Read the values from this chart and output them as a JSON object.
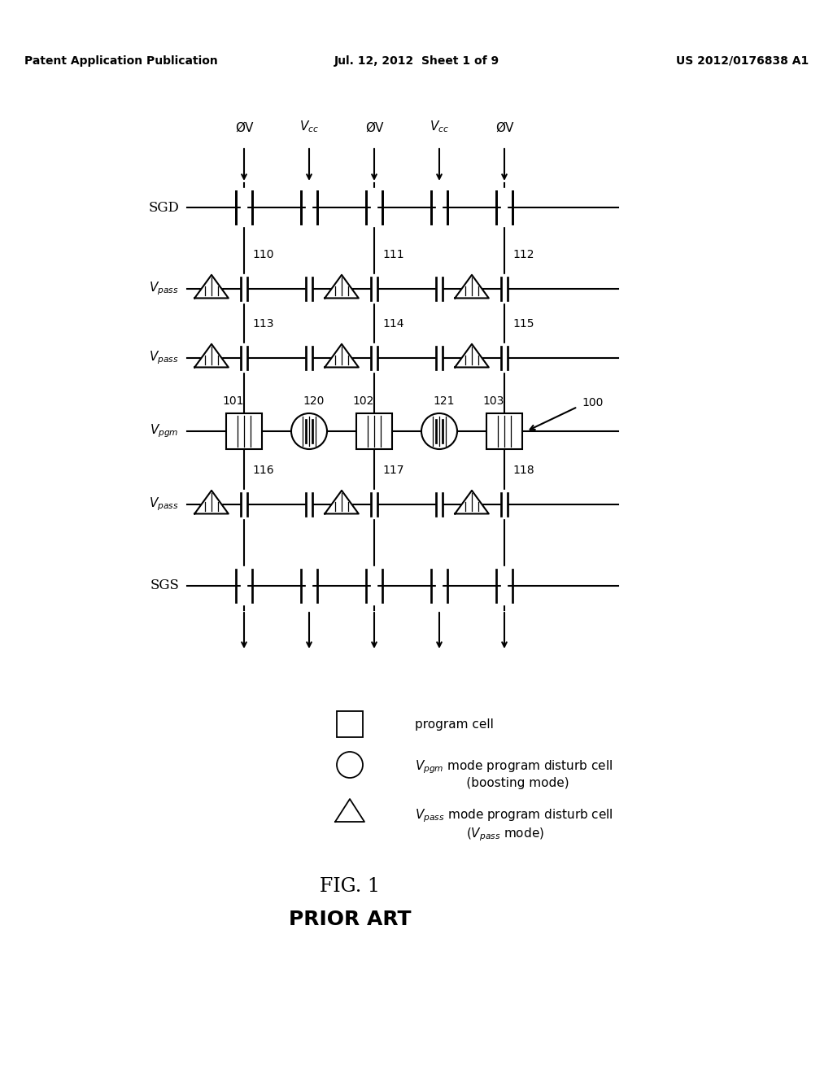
{
  "header_left": "Patent Application Publication",
  "header_center": "Jul. 12, 2012  Sheet 1 of 9",
  "header_right": "US 2012/0176838 A1",
  "bg_color": "#ffffff",
  "line_color": "#000000"
}
